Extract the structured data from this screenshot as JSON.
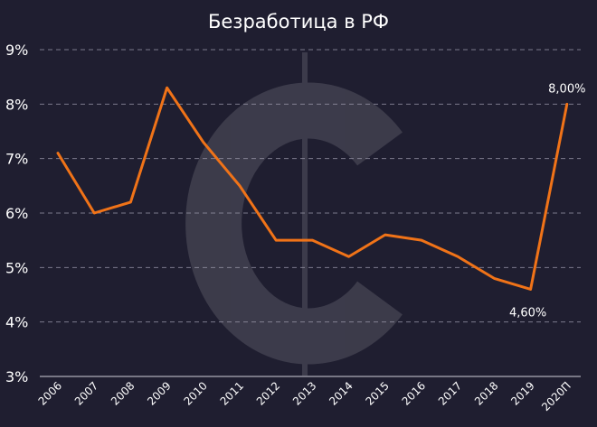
{
  "chart_data": {
    "type": "line",
    "title": "Безработица в РФ",
    "xlabel": "",
    "ylabel": "",
    "categories": [
      "2006",
      "2007",
      "2008",
      "2009",
      "2010",
      "2011",
      "2012",
      "2013",
      "2014",
      "2015",
      "2016",
      "2017",
      "2018",
      "2019",
      "2020П"
    ],
    "series": [
      {
        "values": [
          7.1,
          6.0,
          6.2,
          8.3,
          7.3,
          6.5,
          5.5,
          5.5,
          5.2,
          5.6,
          5.5,
          5.2,
          4.8,
          4.6,
          8.0
        ],
        "color": "#f07318"
      }
    ],
    "ylim": [
      3,
      9
    ],
    "yticks": [
      "3%",
      "4%",
      "5%",
      "6%",
      "7%",
      "8%",
      "9%"
    ],
    "grid": true,
    "legend": "none",
    "annotations": [
      {
        "index": 13,
        "text": "4,60%"
      },
      {
        "index": 14,
        "text": "8,00%"
      }
    ]
  }
}
